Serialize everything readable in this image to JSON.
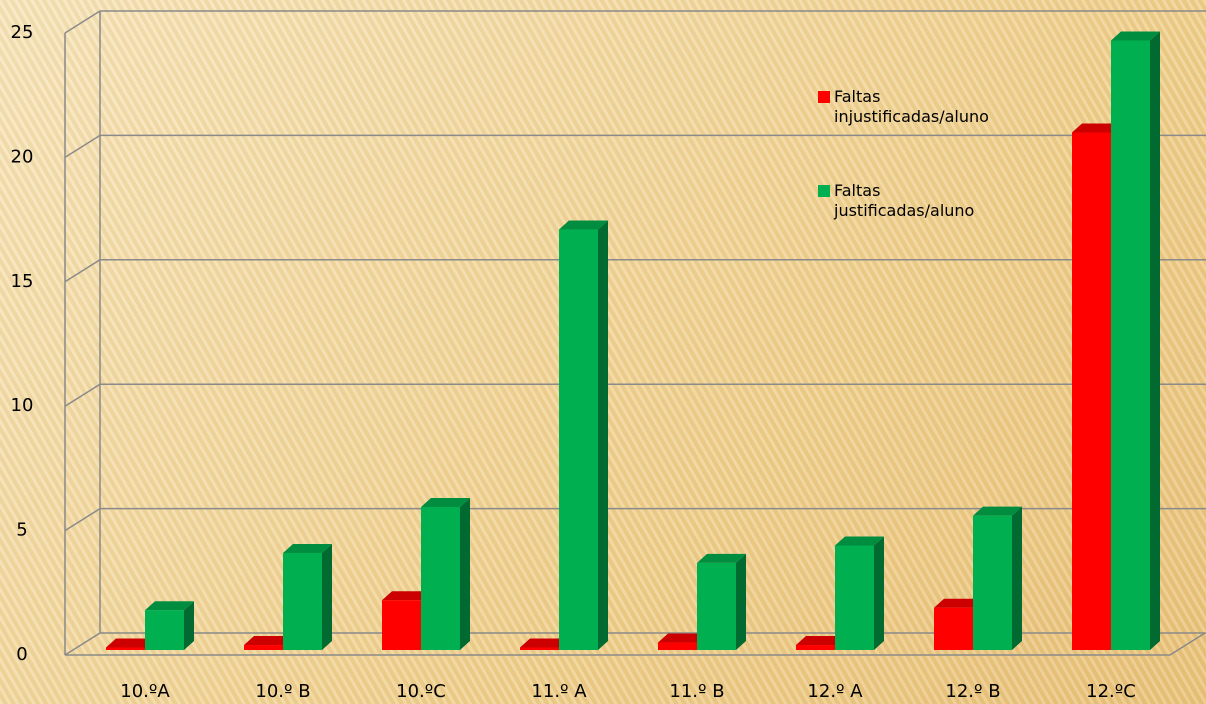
{
  "chart_data": {
    "type": "bar3d",
    "categories": [
      "10.ºA",
      "10.º B",
      "10.ºC",
      "11.º A",
      "11.º B",
      "12.º A",
      "12.º B",
      "12.ºC"
    ],
    "series": [
      {
        "name": "Faltas injustificadas/aluno",
        "color": "#ff0000",
        "values": [
          0.1,
          0.2,
          2.0,
          0.1,
          0.3,
          0.2,
          1.7,
          20.8
        ]
      },
      {
        "name": "Faltas justificadas/aluno",
        "color": "#00b050",
        "values": [
          1.6,
          3.9,
          5.75,
          16.9,
          3.5,
          4.2,
          5.4,
          24.5
        ]
      }
    ],
    "ylim": [
      0,
      25
    ],
    "yticks": [
      0,
      5,
      10,
      15,
      20,
      25
    ],
    "grid": true,
    "legend": "top-right"
  }
}
